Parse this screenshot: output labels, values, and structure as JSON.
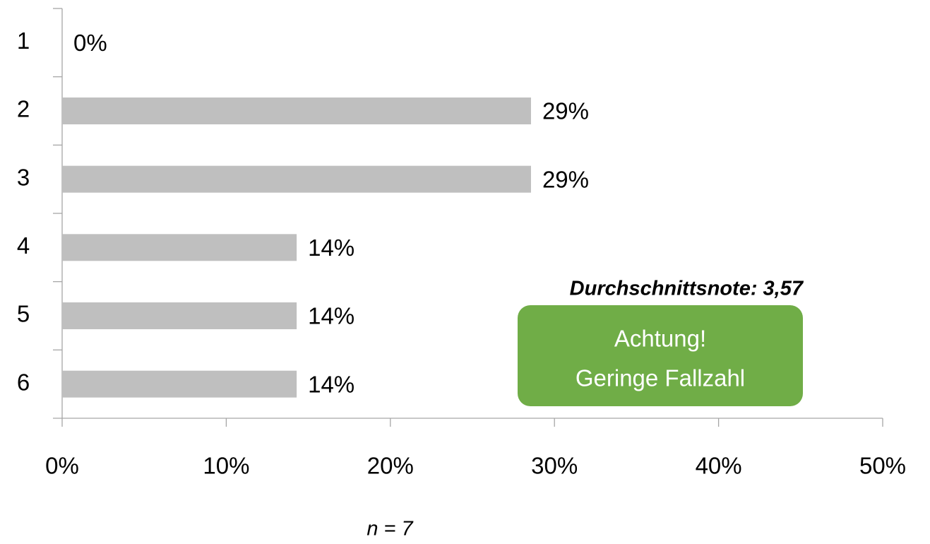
{
  "chart_data": {
    "type": "bar",
    "orientation": "horizontal",
    "categories": [
      "1",
      "2",
      "3",
      "4",
      "5",
      "6"
    ],
    "values": [
      0,
      28.57,
      28.57,
      14.29,
      14.29,
      14.29
    ],
    "value_labels": [
      "0%",
      "29%",
      "29%",
      "14%",
      "14%",
      "14%"
    ],
    "color": "#bfbfbf",
    "xlim": [
      0,
      50
    ],
    "xticks": [
      {
        "value": 0,
        "label": "0%"
      },
      {
        "value": 10,
        "label": "10%"
      },
      {
        "value": 20,
        "label": "20%"
      },
      {
        "value": 30,
        "label": "30%"
      },
      {
        "value": 40,
        "label": "40%"
      },
      {
        "value": 50,
        "label": "50%"
      }
    ],
    "grid": false,
    "annotations": {
      "average": "Durchschnittsnote:  3,57",
      "warning_line1": "Achtung!",
      "warning_line2": "Geringe Fallzahl",
      "sample": "n = 7"
    },
    "warning_color": "#70ad47"
  }
}
